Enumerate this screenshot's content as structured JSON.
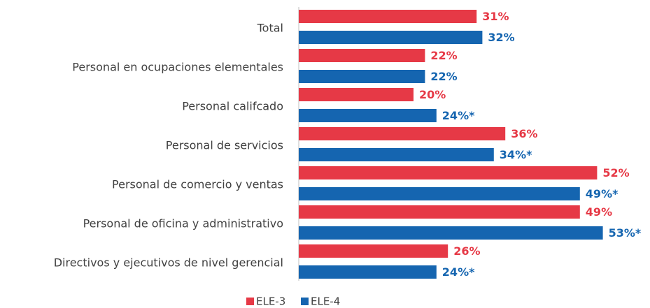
{
  "chart_data": {
    "type": "bar",
    "orientation": "horizontal",
    "categories": [
      "Total",
      "Personal en ocupaciones elementales",
      "Personal califcado",
      "Personal de servicios",
      "Personal de comercio y ventas",
      "Personal de oficina y administrativo",
      "Directivos y ejecutivos de nivel gerencial"
    ],
    "series": [
      {
        "name": "ELE-3",
        "color": "#e63946",
        "values": [
          31,
          22,
          20,
          36,
          52,
          49,
          26
        ],
        "value_labels": [
          "31%",
          "22%",
          "20%",
          "36%",
          "52%",
          "49%",
          "26%"
        ]
      },
      {
        "name": "ELE-4",
        "color": "#1565b0",
        "values": [
          32,
          22,
          24,
          34,
          49,
          53,
          24
        ],
        "value_labels": [
          "32%",
          "22%",
          "24%*",
          "34%*",
          "49%*",
          "53%*",
          "24%*"
        ]
      }
    ],
    "legend": "bottom"
  }
}
